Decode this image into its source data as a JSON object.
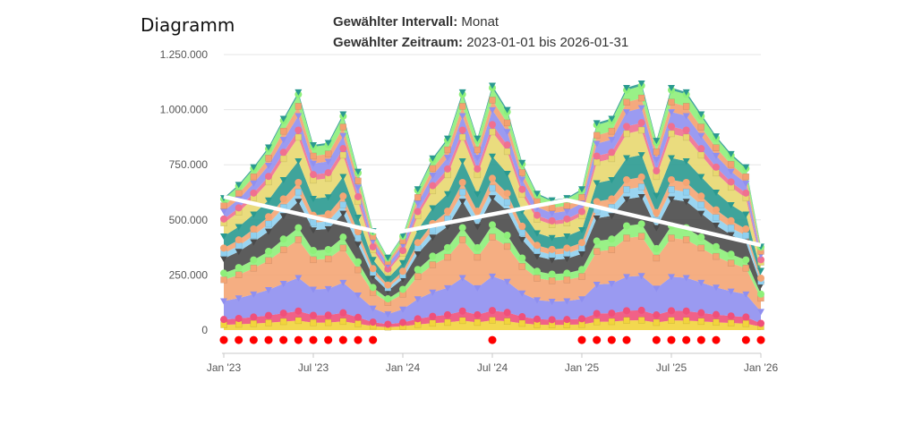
{
  "header": {
    "title": "Diagramm",
    "interval_label": "Gewählter Intervall:",
    "interval_value": "Monat",
    "range_label": "Gewählter Zeitraum:",
    "range_value": "2023-01-01 bis 2026-01-31"
  },
  "colors": {
    "layers": [
      "#f2d43c",
      "#f0507a",
      "#8f8ff0",
      "#f4a574",
      "#8ef07a",
      "#4a4a4a",
      "#8fd0f0",
      "#f4a574",
      "#2a9a90",
      "#e8d870",
      "#f07090",
      "#9090f0",
      "#f4a070",
      "#8ef07a",
      "#2a9a90"
    ],
    "line": "#ffffff",
    "marker": "#ff0000",
    "grid": "#e6e6e6"
  },
  "chart_data": {
    "type": "area",
    "stacked": true,
    "title": "Diagramm",
    "x": [
      "2023-01",
      "2023-02",
      "2023-03",
      "2023-04",
      "2023-05",
      "2023-06",
      "2023-07",
      "2023-08",
      "2023-09",
      "2023-10",
      "2023-11",
      "2023-12",
      "2024-01",
      "2024-02",
      "2024-03",
      "2024-04",
      "2024-05",
      "2024-06",
      "2024-07",
      "2024-08",
      "2024-09",
      "2024-10",
      "2024-11",
      "2024-12",
      "2025-01",
      "2025-02",
      "2025-03",
      "2025-04",
      "2025-05",
      "2025-06",
      "2025-07",
      "2025-08",
      "2025-09",
      "2025-10",
      "2025-11",
      "2025-12",
      "2026-01"
    ],
    "x_tick_labels": [
      "Jan '23",
      "Jul '23",
      "Jan '24",
      "Jul '24",
      "Jan '25",
      "Jul '25",
      "Jan '26"
    ],
    "x_tick_index": [
      0,
      6,
      12,
      18,
      24,
      30,
      36
    ],
    "y_tick_labels": [
      "0",
      "250.000",
      "500.000",
      "750.000",
      "1.000.000",
      "1.250.000"
    ],
    "ylim": [
      -100000,
      1280000
    ],
    "totals": [
      600000,
      660000,
      740000,
      830000,
      960000,
      1080000,
      840000,
      850000,
      980000,
      720000,
      450000,
      330000,
      430000,
      640000,
      780000,
      870000,
      1080000,
      870000,
      1110000,
      1000000,
      760000,
      620000,
      590000,
      600000,
      640000,
      940000,
      960000,
      1100000,
      1120000,
      860000,
      1100000,
      1080000,
      980000,
      880000,
      800000,
      740000,
      380000
    ],
    "layer_shares": [
      0.04,
      0.04,
      0.14,
      0.16,
      0.05,
      0.11,
      0.04,
      0.04,
      0.09,
      0.1,
      0.03,
      0.06,
      0.04,
      0.05,
      0.01
    ],
    "white_line": [
      605000,
      435000,
      590000,
      385000
    ],
    "white_line_index": [
      0,
      11,
      23,
      36
    ],
    "red_markers_index": [
      0,
      1,
      2,
      3,
      4,
      5,
      6,
      7,
      8,
      9,
      10,
      18,
      24,
      25,
      26,
      27,
      29,
      30,
      31,
      32,
      33,
      35,
      36
    ],
    "red_marker_value": -45000
  }
}
